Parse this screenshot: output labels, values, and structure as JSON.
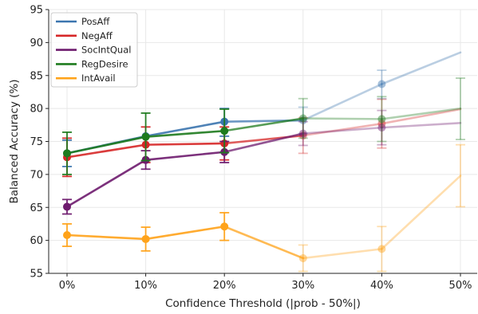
{
  "chart_data": {
    "type": "line",
    "title": "",
    "xlabel": "Confidence Threshold (|prob - 50%|)",
    "ylabel": "Balanced Accuracy (%)",
    "categories": [
      "0%",
      "10%",
      "20%",
      "30%",
      "40%",
      "50%"
    ],
    "ylim": [
      55,
      95
    ],
    "yticks": [
      55,
      60,
      65,
      70,
      75,
      80,
      85,
      90,
      95
    ],
    "grid": true,
    "legend_position": "top-left",
    "series": [
      {
        "name": "PosAff",
        "color": "#3b75af",
        "values": [
          73.2,
          75.8,
          78.0,
          78.2,
          83.7,
          88.5
        ],
        "err_low": [
          71.2,
          null,
          75.8,
          76.2,
          81.5,
          null
        ],
        "err_high": [
          75.2,
          null,
          80.0,
          80.2,
          85.8,
          null
        ]
      },
      {
        "name": "NegAff",
        "color": "#d62728",
        "values": [
          72.6,
          74.5,
          74.7,
          75.9,
          77.7,
          79.9
        ],
        "err_low": [
          69.7,
          71.8,
          72.2,
          73.2,
          74.0,
          null
        ],
        "err_high": [
          75.5,
          77.2,
          77.2,
          78.6,
          81.4,
          null
        ]
      },
      {
        "name": "SocIntQual",
        "color": "#6e1b6e",
        "values": [
          65.1,
          72.2,
          73.4,
          76.2,
          77.1,
          77.8
        ],
        "err_low": [
          64.0,
          70.8,
          71.8,
          74.4,
          74.5,
          null
        ],
        "err_high": [
          66.2,
          73.6,
          75.0,
          78.0,
          79.7,
          null
        ]
      },
      {
        "name": "RegDesire",
        "color": "#1e7b1e",
        "values": [
          73.2,
          75.7,
          76.6,
          78.5,
          78.4,
          80.0
        ],
        "err_low": [
          70.0,
          72.1,
          73.3,
          75.5,
          75.0,
          75.3
        ],
        "err_high": [
          76.4,
          79.3,
          79.9,
          81.5,
          81.8,
          84.6
        ]
      },
      {
        "name": "IntAvail",
        "color": "#ffa31a",
        "values": [
          60.8,
          60.2,
          62.1,
          57.3,
          58.7,
          69.8
        ],
        "err_low": [
          59.1,
          58.4,
          60.0,
          55.3,
          55.3,
          65.1
        ],
        "err_high": [
          62.5,
          62.0,
          64.2,
          59.3,
          62.1,
          74.5
        ]
      }
    ],
    "fade_from_index": 3
  }
}
